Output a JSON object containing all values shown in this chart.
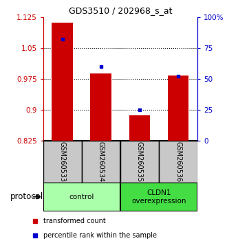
{
  "title": "GDS3510 / 202968_s_at",
  "samples": [
    "GSM260533",
    "GSM260534",
    "GSM260535",
    "GSM260536"
  ],
  "transformed_counts": [
    1.112,
    0.988,
    0.887,
    0.984
  ],
  "percentile_ranks_pct": [
    82,
    60,
    25,
    52
  ],
  "ylim_left": [
    0.825,
    1.125
  ],
  "yticks_left": [
    0.825,
    0.9,
    0.975,
    1.05,
    1.125
  ],
  "ytick_labels_left": [
    "0.825",
    "0.9",
    "0.975",
    "1.05",
    "1.125"
  ],
  "ylim_right": [
    0,
    100
  ],
  "yticks_right": [
    0,
    25,
    50,
    75,
    100
  ],
  "ytick_labels_right": [
    "0",
    "25",
    "50",
    "75",
    "100%"
  ],
  "bar_color": "#cc0000",
  "dot_color": "#0000cc",
  "bar_width": 0.55,
  "group_labels": [
    "control",
    "CLDN1\noverexpression"
  ],
  "group_colors": [
    "#aaffaa",
    "#44dd44"
  ],
  "group_ranges": [
    [
      0,
      2
    ],
    [
      2,
      4
    ]
  ],
  "protocol_label": "protocol",
  "legend_items": [
    {
      "color": "#cc0000",
      "label": "transformed count"
    },
    {
      "color": "#0000cc",
      "label": "percentile rank within the sample"
    }
  ],
  "background_color": "#ffffff",
  "sample_box_color": "#c8c8c8",
  "title_fontsize": 9
}
